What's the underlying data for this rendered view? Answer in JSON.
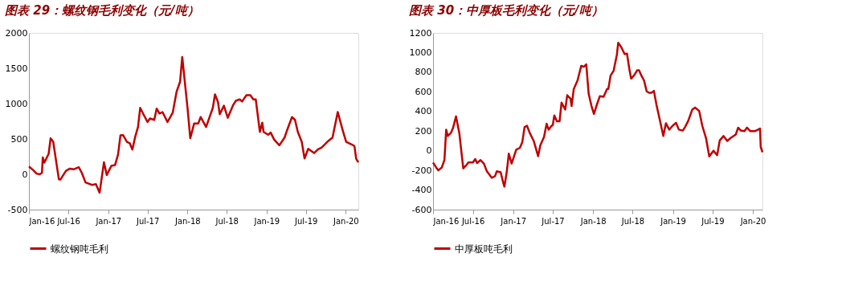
{
  "chart_data": [
    {
      "type": "line",
      "title": "图表 29：螺纹钢毛利变化（元/吨）",
      "legend": "bottom",
      "grid": false,
      "line_style": "solid",
      "marker": "none",
      "x": [
        "2016-01-01",
        "2016-01-22",
        "2016-02-05",
        "2016-02-20",
        "2016-03-01",
        "2016-03-05",
        "2016-03-12",
        "2016-04-01",
        "2016-04-10",
        "2016-04-22",
        "2016-05-18",
        "2016-05-25",
        "2016-06-20",
        "2016-07-08",
        "2016-07-25",
        "2016-08-18",
        "2016-09-01",
        "2016-09-18",
        "2016-10-05",
        "2016-10-18",
        "2016-11-05",
        "2016-11-22",
        "2016-12-12",
        "2016-12-25",
        "2017-01-15",
        "2017-02-01",
        "2017-02-15",
        "2017-02-26",
        "2017-03-10",
        "2017-03-28",
        "2017-04-10",
        "2017-04-22",
        "2017-05-05",
        "2017-05-18",
        "2017-05-28",
        "2017-06-12",
        "2017-07-01",
        "2017-07-12",
        "2017-08-01",
        "2017-08-12",
        "2017-08-25",
        "2017-09-08",
        "2017-10-01",
        "2017-10-25",
        "2017-11-12",
        "2017-11-28",
        "2017-12-08",
        "2018-01-01",
        "2018-01-14",
        "2018-02-01",
        "2018-02-20",
        "2018-03-03",
        "2018-03-28",
        "2018-04-12",
        "2018-04-28",
        "2018-05-08",
        "2018-05-22",
        "2018-05-30",
        "2018-06-18",
        "2018-07-06",
        "2018-07-30",
        "2018-08-12",
        "2018-08-30",
        "2018-09-10",
        "2018-09-30",
        "2018-10-18",
        "2018-11-01",
        "2018-11-12",
        "2018-12-01",
        "2018-12-12",
        "2018-12-18",
        "2019-01-08",
        "2019-01-20",
        "2019-02-05",
        "2019-03-01",
        "2019-03-25",
        "2019-04-05",
        "2019-04-28",
        "2019-05-12",
        "2019-05-25",
        "2019-06-12",
        "2019-06-25",
        "2019-07-12",
        "2019-08-08",
        "2019-08-25",
        "2019-09-12",
        "2019-10-08",
        "2019-11-01",
        "2019-11-25",
        "2019-12-20",
        "2020-01-03",
        "2020-01-30",
        "2020-02-10",
        "2020-02-18",
        "2020-02-28"
      ],
      "series": [
        {
          "name": "螺纹钢吨毛利",
          "color": "#c00000",
          "values": [
            110,
            55,
            10,
            0,
            20,
            240,
            165,
            290,
            510,
            460,
            -70,
            -75,
            50,
            80,
            70,
            100,
            20,
            -115,
            -135,
            -150,
            -140,
            -260,
            170,
            -10,
            120,
            130,
            280,
            550,
            555,
            460,
            440,
            350,
            530,
            670,
            940,
            850,
            740,
            790,
            770,
            930,
            860,
            880,
            740,
            870,
            1170,
            1310,
            1660,
            950,
            510,
            720,
            720,
            810,
            670,
            800,
            940,
            1130,
            1020,
            850,
            970,
            800,
            975,
            1040,
            1060,
            1030,
            1120,
            1120,
            1060,
            1060,
            600,
            730,
            600,
            560,
            590,
            490,
            410,
            520,
            620,
            810,
            770,
            600,
            460,
            225,
            360,
            300,
            350,
            380,
            460,
            520,
            880,
            600,
            460,
            420,
            400,
            220,
            170
          ]
        }
      ],
      "xlim": [
        "2016-01-01",
        "2020-02-28"
      ],
      "xticks": [
        {
          "value": "2016-01-01",
          "label": "Jan-16"
        },
        {
          "value": "2016-07-01",
          "label": "Jul-16"
        },
        {
          "value": "2017-01-01",
          "label": "Jan-17"
        },
        {
          "value": "2017-07-01",
          "label": "Jul-17"
        },
        {
          "value": "2018-01-01",
          "label": "Jan-18"
        },
        {
          "value": "2018-07-01",
          "label": "Jul-18"
        },
        {
          "value": "2019-01-01",
          "label": "Jan-19"
        },
        {
          "value": "2019-07-01",
          "label": "Jul-19"
        },
        {
          "value": "2020-01-01",
          "label": "Jan-20"
        }
      ],
      "ylim": [
        -500,
        2000
      ],
      "yticks": [
        -500,
        0,
        500,
        1000,
        1500,
        2000
      ]
    },
    {
      "type": "line",
      "title": "图表 30：中厚板毛利变化（元/吨）",
      "legend": "bottom",
      "grid": false,
      "line_style": "solid",
      "marker": "none",
      "x": [
        "2016-01-01",
        "2016-01-15",
        "2016-01-25",
        "2016-02-10",
        "2016-02-22",
        "2016-03-01",
        "2016-03-08",
        "2016-03-22",
        "2016-04-01",
        "2016-04-15",
        "2016-04-30",
        "2016-05-10",
        "2016-05-18",
        "2016-06-02",
        "2016-06-10",
        "2016-07-01",
        "2016-07-12",
        "2016-07-20",
        "2016-08-05",
        "2016-08-20",
        "2016-09-03",
        "2016-09-25",
        "2016-10-10",
        "2016-10-18",
        "2016-11-05",
        "2016-11-16",
        "2016-11-22",
        "2016-12-03",
        "2016-12-12",
        "2016-12-25",
        "2017-01-15",
        "2017-02-01",
        "2017-02-12",
        "2017-02-22",
        "2017-03-05",
        "2017-03-18",
        "2017-04-05",
        "2017-04-25",
        "2017-05-05",
        "2017-05-22",
        "2017-06-03",
        "2017-06-12",
        "2017-06-26",
        "2017-07-01",
        "2017-07-08",
        "2017-07-20",
        "2017-08-01",
        "2017-08-10",
        "2017-08-27",
        "2017-09-05",
        "2017-09-20",
        "2017-09-25",
        "2017-10-05",
        "2017-10-22",
        "2017-11-08",
        "2017-11-20",
        "2017-12-01",
        "2017-12-12",
        "2017-12-25",
        "2018-01-05",
        "2018-01-20",
        "2018-02-01",
        "2018-02-18",
        "2018-03-06",
        "2018-03-12",
        "2018-03-22",
        "2018-04-05",
        "2018-04-20",
        "2018-04-26",
        "2018-05-10",
        "2018-05-25",
        "2018-06-05",
        "2018-06-16",
        "2018-06-24",
        "2018-07-08",
        "2018-07-22",
        "2018-07-30",
        "2018-08-10",
        "2018-08-22",
        "2018-09-03",
        "2018-09-14",
        "2018-09-25",
        "2018-10-06",
        "2018-10-18",
        "2018-11-02",
        "2018-11-18",
        "2018-11-30",
        "2018-12-15",
        "2018-12-31",
        "2019-01-15",
        "2019-01-28",
        "2019-02-15",
        "2019-02-25",
        "2019-03-12",
        "2019-03-30",
        "2019-04-12",
        "2019-05-01",
        "2019-05-15",
        "2019-06-01",
        "2019-06-16",
        "2019-07-05",
        "2019-07-22",
        "2019-08-03",
        "2019-08-20",
        "2019-09-06",
        "2019-09-22",
        "2019-10-15",
        "2019-10-26",
        "2019-11-07",
        "2019-11-24",
        "2019-12-05",
        "2019-12-20",
        "2020-01-12",
        "2020-02-03",
        "2020-02-06",
        "2020-02-14"
      ],
      "series": [
        {
          "name": "中厚板吨毛利",
          "color": "#c00000",
          "values": [
            -120,
            -170,
            -200,
            -170,
            -95,
            215,
            150,
            180,
            230,
            350,
            180,
            -20,
            -180,
            -145,
            -120,
            -120,
            -85,
            -125,
            -95,
            -130,
            -210,
            -275,
            -260,
            -210,
            -220,
            -320,
            -365,
            -210,
            -30,
            -130,
            10,
            30,
            90,
            240,
            255,
            180,
            100,
            -55,
            55,
            140,
            275,
            215,
            255,
            260,
            360,
            300,
            300,
            490,
            420,
            565,
            530,
            455,
            630,
            715,
            865,
            855,
            880,
            580,
            455,
            375,
            480,
            555,
            550,
            630,
            630,
            765,
            815,
            980,
            1100,
            1055,
            985,
            990,
            830,
            735,
            770,
            820,
            820,
            765,
            715,
            605,
            590,
            590,
            610,
            465,
            315,
            150,
            280,
            215,
            255,
            285,
            215,
            205,
            240,
            305,
            418,
            440,
            405,
            255,
            130,
            -58,
            0,
            -45,
            105,
            150,
            100,
            130,
            165,
            235,
            205,
            200,
            235,
            200,
            200,
            225,
            40,
            -15
          ]
        }
      ],
      "xlim": [
        "2016-01-01",
        "2020-02-14"
      ],
      "xticks": [
        {
          "value": "2016-01-01",
          "label": "Jan-16"
        },
        {
          "value": "2016-07-01",
          "label": "Jul-16"
        },
        {
          "value": "2017-01-01",
          "label": "Jan-17"
        },
        {
          "value": "2017-07-01",
          "label": "Jul-17"
        },
        {
          "value": "2018-01-01",
          "label": "Jan-18"
        },
        {
          "value": "2018-07-01",
          "label": "Jul-18"
        },
        {
          "value": "2019-01-01",
          "label": "Jan-19"
        },
        {
          "value": "2019-07-01",
          "label": "Jul-19"
        },
        {
          "value": "2020-01-01",
          "label": "Jan-20"
        }
      ],
      "ylim": [
        -600,
        1200
      ],
      "yticks": [
        -600,
        -400,
        -200,
        0,
        200,
        400,
        600,
        800,
        1000,
        1200
      ]
    }
  ]
}
